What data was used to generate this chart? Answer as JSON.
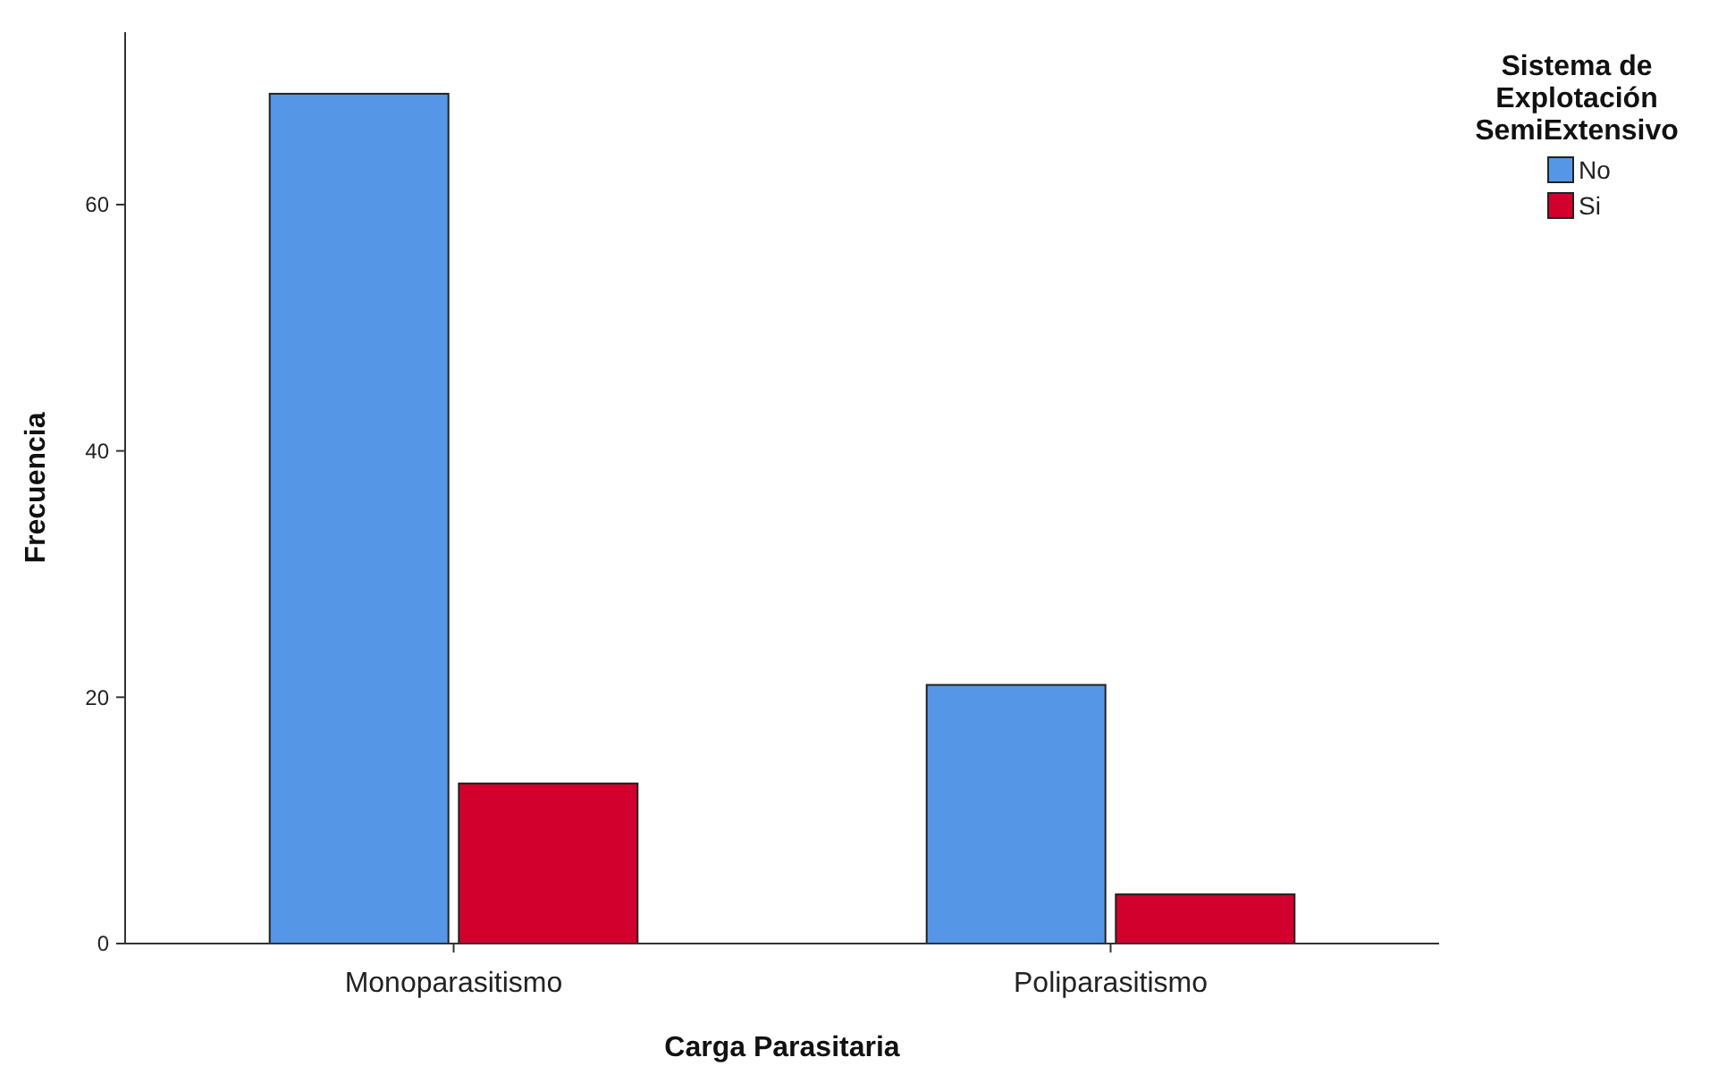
{
  "chart_data": {
    "type": "bar",
    "xlabel": "Carga Parasitaria",
    "ylabel": "Frecuencia",
    "legend_title": "Sistema de Explotación SemiExtensivo",
    "categories": [
      "Monoparasitismo",
      "Poliparasitismo"
    ],
    "series": [
      {
        "name": "No",
        "color": "#5596e6",
        "values": [
          69,
          21
        ]
      },
      {
        "name": "Si",
        "color": "#d2002d",
        "values": [
          13,
          4
        ]
      }
    ],
    "ylim": [
      0,
      74
    ],
    "yticks": [
      0,
      20,
      40,
      60
    ],
    "grid": false,
    "legend": "top right"
  }
}
